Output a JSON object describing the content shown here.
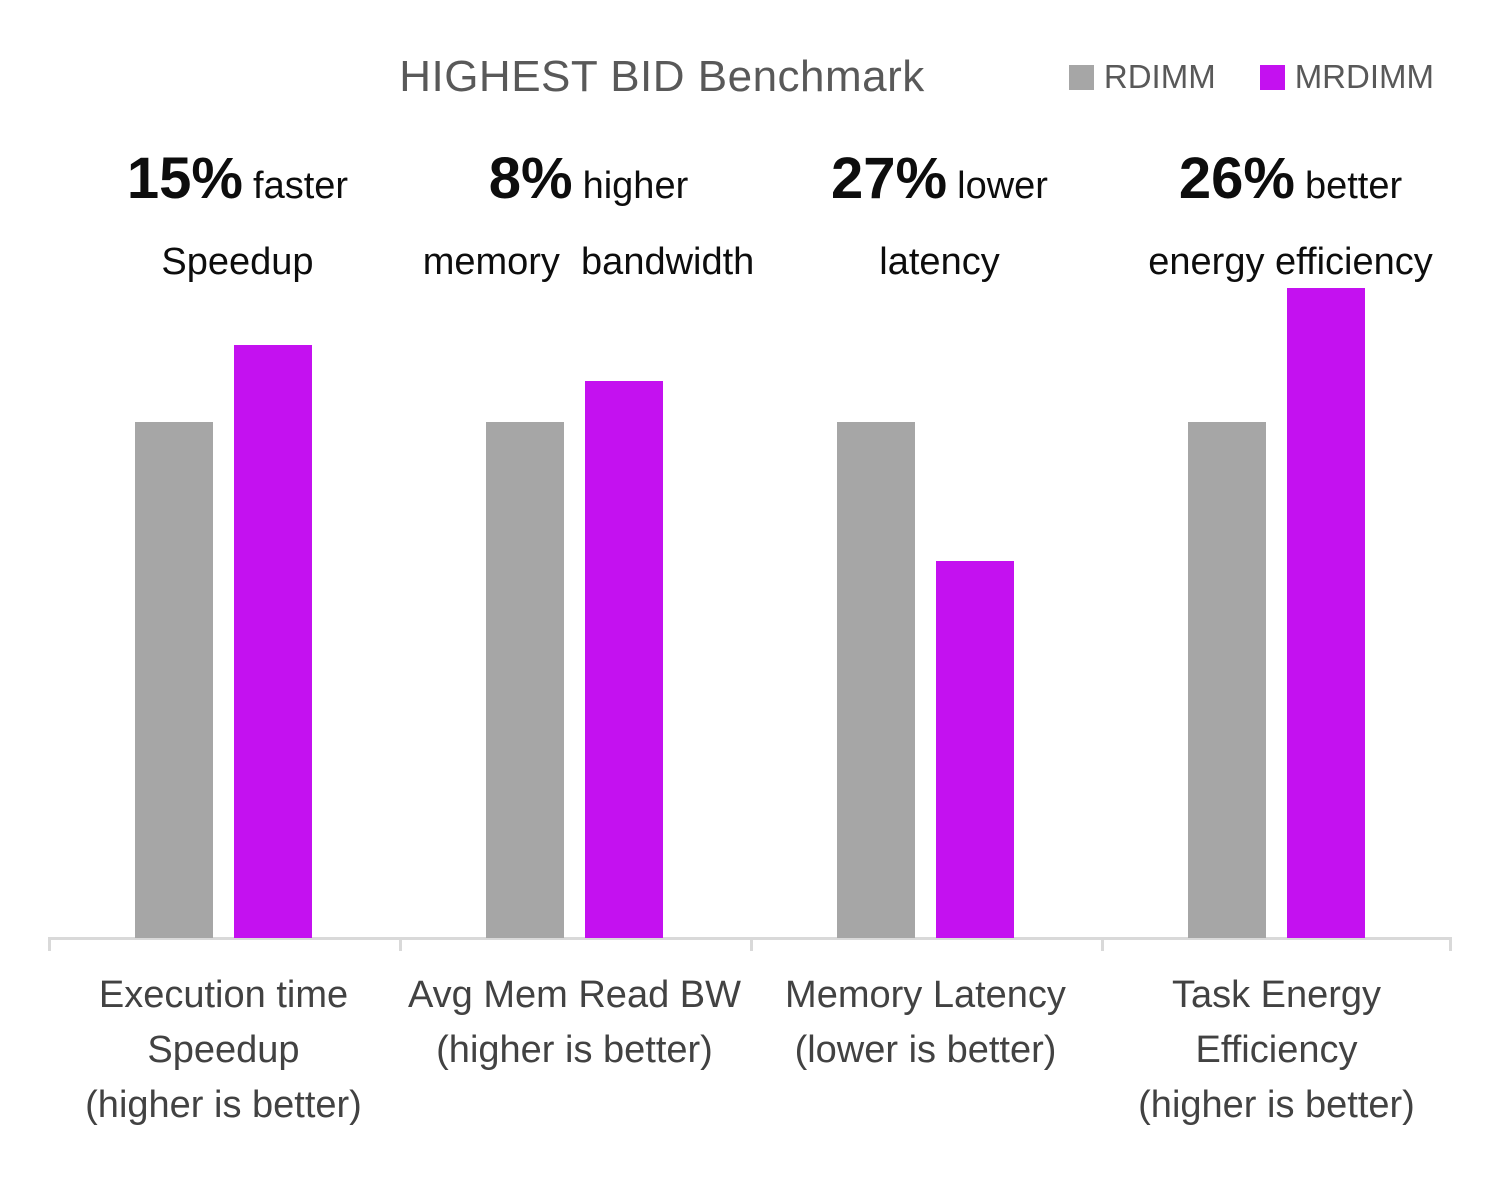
{
  "chart_data": {
    "type": "bar",
    "title": "HIGHEST BID Benchmark",
    "categories": [
      "Execution time Speedup (higher is better)",
      "Avg Mem Read BW (higher is better)",
      "Memory Latency (lower is better)",
      "Task Energy Efficiency (higher is better)"
    ],
    "category_label_lines": [
      [
        "Execution time",
        "Speedup",
        "(higher is better)"
      ],
      [
        "Avg Mem Read BW",
        "(higher is better)"
      ],
      [
        "Memory Latency",
        "(lower is better)"
      ],
      [
        "Task Energy",
        "Efficiency",
        "(higher is better)"
      ]
    ],
    "series": [
      {
        "name": "RDIMM",
        "color": "#a6a6a6",
        "values": [
          1.0,
          1.0,
          1.0,
          1.0
        ]
      },
      {
        "name": "MRDIMM",
        "color": "#c411f0",
        "values": [
          1.15,
          1.08,
          0.73,
          1.26
        ]
      }
    ],
    "annotations": [
      {
        "value": "15%",
        "suffix": "faster",
        "line2": "Speedup"
      },
      {
        "value": "8%",
        "suffix": "higher",
        "line2": "memory  bandwidth"
      },
      {
        "value": "27%",
        "suffix": "lower",
        "line2": "latency"
      },
      {
        "value": "26%",
        "suffix": "better",
        "line2": "energy efficiency"
      }
    ],
    "ylim": [
      0,
      1.32
    ],
    "grid": false,
    "legend_position": "top-right",
    "axis_color": "#d9d9d9",
    "title_color": "#595959",
    "annotation_color": "#0d0d0d",
    "axis_label_color": "#424242"
  }
}
